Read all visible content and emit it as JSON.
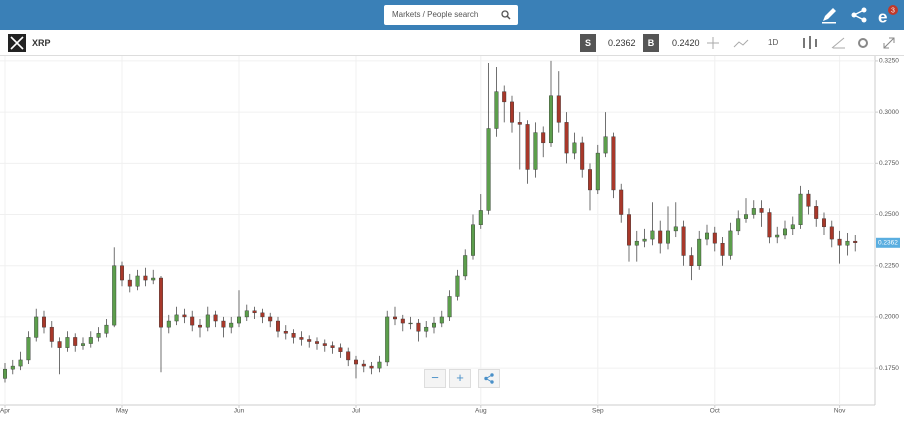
{
  "ui": {
    "search_placeholder": "Markets / People search",
    "symbol": "XRP",
    "sell_label": "S",
    "sell_price": "0.2362",
    "buy_label": "B",
    "buy_price": "0.2420",
    "interval": "1D",
    "notification_count": "3"
  },
  "chart_data": {
    "type": "candlestick",
    "categories": [
      "Apr",
      null,
      null,
      null,
      null,
      null,
      null,
      null,
      null,
      null,
      null,
      null,
      null,
      null,
      null,
      "May",
      null,
      null,
      null,
      null,
      null,
      null,
      null,
      null,
      null,
      null,
      null,
      null,
      null,
      null,
      "Jun",
      null,
      null,
      null,
      null,
      null,
      null,
      null,
      null,
      null,
      null,
      null,
      null,
      null,
      null,
      "Jul",
      null,
      null,
      null,
      null,
      null,
      null,
      null,
      null,
      null,
      null,
      null,
      null,
      null,
      null,
      null,
      "Aug",
      null,
      null,
      null,
      null,
      null,
      null,
      null,
      null,
      null,
      null,
      null,
      null,
      null,
      null,
      "Sep",
      null,
      null,
      null,
      null,
      null,
      null,
      null,
      null,
      null,
      null,
      null,
      null,
      null,
      null,
      "Oct",
      null,
      null,
      null,
      null,
      null,
      null,
      null,
      null,
      null,
      null,
      null,
      null,
      null,
      null,
      null,
      "Nov",
      null,
      null
    ],
    "open": [
      0.17,
      0.1745,
      0.176,
      0.179,
      0.19,
      0.2,
      0.195,
      0.188,
      0.185,
      0.19,
      0.186,
      0.187,
      0.19,
      0.192,
      0.196,
      0.225,
      0.218,
      0.215,
      0.22,
      0.218,
      0.219,
      0.195,
      0.198,
      0.201,
      0.2,
      0.196,
      0.195,
      0.201,
      0.198,
      0.195,
      0.197,
      0.2,
      0.203,
      0.202,
      0.2,
      0.198,
      0.193,
      0.192,
      0.19,
      0.189,
      0.188,
      0.187,
      0.186,
      0.185,
      0.183,
      0.179,
      0.177,
      0.176,
      0.175,
      0.178,
      0.2,
      0.199,
      0.197,
      0.197,
      0.193,
      0.195,
      0.197,
      0.2,
      0.21,
      0.22,
      0.23,
      0.245,
      0.252,
      0.292,
      0.31,
      0.305,
      0.295,
      0.294,
      0.272,
      0.29,
      0.285,
      0.308,
      0.295,
      0.28,
      0.285,
      0.272,
      0.262,
      0.28,
      0.288,
      0.262,
      0.25,
      0.235,
      0.237,
      0.238,
      0.242,
      0.236,
      0.242,
      0.244,
      0.23,
      0.225,
      0.238,
      0.241,
      0.236,
      0.23,
      0.242,
      0.248,
      0.25,
      0.253,
      0.251,
      0.239,
      0.24,
      0.243,
      0.245,
      0.26,
      0.254,
      0.248,
      0.244,
      0.238,
      0.235,
      0.237
    ],
    "high": [
      0.1775,
      0.179,
      0.183,
      0.193,
      0.204,
      0.203,
      0.198,
      0.19,
      0.193,
      0.192,
      0.19,
      0.193,
      0.195,
      0.199,
      0.234,
      0.227,
      0.221,
      0.223,
      0.224,
      0.223,
      0.22,
      0.201,
      0.205,
      0.204,
      0.203,
      0.199,
      0.205,
      0.203,
      0.2,
      0.2,
      0.213,
      0.206,
      0.205,
      0.204,
      0.202,
      0.2,
      0.196,
      0.194,
      0.193,
      0.191,
      0.19,
      0.189,
      0.188,
      0.187,
      0.185,
      0.181,
      0.179,
      0.178,
      0.181,
      0.203,
      0.205,
      0.201,
      0.2,
      0.199,
      0.198,
      0.2,
      0.203,
      0.213,
      0.223,
      0.233,
      0.25,
      0.26,
      0.324,
      0.322,
      0.313,
      0.308,
      0.3,
      0.296,
      0.295,
      0.293,
      0.325,
      0.32,
      0.3,
      0.29,
      0.288,
      0.275,
      0.284,
      0.3,
      0.29,
      0.265,
      0.253,
      0.242,
      0.243,
      0.256,
      0.247,
      0.254,
      0.256,
      0.247,
      0.234,
      0.242,
      0.245,
      0.244,
      0.239,
      0.246,
      0.252,
      0.258,
      0.257,
      0.257,
      0.253,
      0.244,
      0.247,
      0.249,
      0.264,
      0.262,
      0.257,
      0.251,
      0.247,
      0.242,
      0.241,
      0.24
    ],
    "low": [
      0.168,
      0.172,
      0.174,
      0.177,
      0.188,
      0.192,
      0.185,
      0.172,
      0.183,
      0.183,
      0.184,
      0.185,
      0.188,
      0.19,
      0.195,
      0.215,
      0.212,
      0.213,
      0.215,
      0.216,
      0.173,
      0.192,
      0.196,
      0.197,
      0.193,
      0.19,
      0.193,
      0.195,
      0.19,
      0.192,
      0.195,
      0.198,
      0.199,
      0.197,
      0.195,
      0.19,
      0.189,
      0.187,
      0.186,
      0.185,
      0.184,
      0.183,
      0.182,
      0.18,
      0.176,
      0.17,
      0.173,
      0.172,
      0.173,
      0.176,
      0.196,
      0.193,
      0.194,
      0.188,
      0.19,
      0.192,
      0.195,
      0.198,
      0.208,
      0.218,
      0.228,
      0.243,
      0.25,
      0.288,
      0.295,
      0.29,
      0.272,
      0.265,
      0.268,
      0.278,
      0.283,
      0.29,
      0.275,
      0.277,
      0.268,
      0.252,
      0.26,
      0.278,
      0.258,
      0.246,
      0.227,
      0.227,
      0.234,
      0.235,
      0.231,
      0.233,
      0.239,
      0.225,
      0.218,
      0.223,
      0.235,
      0.232,
      0.225,
      0.228,
      0.24,
      0.246,
      0.248,
      0.244,
      0.236,
      0.236,
      0.238,
      0.24,
      0.243,
      0.25,
      0.244,
      0.24,
      0.234,
      0.226,
      0.23,
      0.232
    ],
    "close": [
      0.1745,
      0.176,
      0.179,
      0.19,
      0.2,
      0.195,
      0.188,
      0.185,
      0.19,
      0.186,
      0.187,
      0.19,
      0.192,
      0.196,
      0.225,
      0.218,
      0.215,
      0.22,
      0.218,
      0.219,
      0.195,
      0.198,
      0.201,
      0.2,
      0.196,
      0.195,
      0.201,
      0.198,
      0.195,
      0.197,
      0.2,
      0.203,
      0.202,
      0.2,
      0.198,
      0.193,
      0.192,
      0.19,
      0.189,
      0.188,
      0.187,
      0.186,
      0.185,
      0.183,
      0.179,
      0.177,
      0.176,
      0.175,
      0.178,
      0.2,
      0.199,
      0.197,
      0.197,
      0.193,
      0.195,
      0.197,
      0.2,
      0.21,
      0.22,
      0.23,
      0.245,
      0.252,
      0.292,
      0.31,
      0.305,
      0.295,
      0.294,
      0.272,
      0.29,
      0.285,
      0.308,
      0.295,
      0.28,
      0.285,
      0.272,
      0.262,
      0.28,
      0.288,
      0.262,
      0.25,
      0.235,
      0.237,
      0.238,
      0.242,
      0.236,
      0.242,
      0.244,
      0.23,
      0.225,
      0.238,
      0.241,
      0.236,
      0.23,
      0.242,
      0.248,
      0.25,
      0.253,
      0.251,
      0.239,
      0.24,
      0.243,
      0.245,
      0.26,
      0.254,
      0.248,
      0.244,
      0.238,
      0.235,
      0.237,
      0.2362
    ],
    "up_color": "#5c9e4c",
    "down_color": "#a8382a",
    "last_price_color": "#5aaee0",
    "ylim": [
      0.157,
      0.3274
    ],
    "yticks": [
      {
        "value": 0.175,
        "label": "0.1750"
      },
      {
        "value": 0.2,
        "label": "0.2000"
      },
      {
        "value": 0.225,
        "label": "0.2250"
      },
      {
        "value": 0.25,
        "label": "0.2500"
      },
      {
        "value": 0.275,
        "label": "0.2750"
      },
      {
        "value": 0.3,
        "label": "0.3000"
      },
      {
        "value": 0.325,
        "label": "0.3250"
      }
    ],
    "grid": true
  }
}
